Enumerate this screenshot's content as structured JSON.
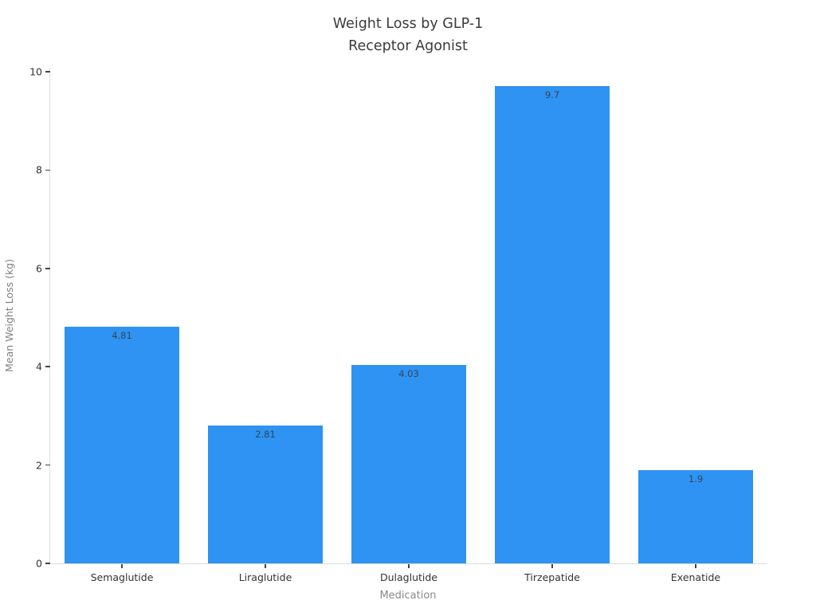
{
  "chart_data": {
    "type": "bar",
    "title": "Weight Loss by GLP-1 Receptor Agonist",
    "title_line1": "Weight Loss by GLP-1",
    "title_line2": "Receptor Agonist",
    "xlabel": "Medication",
    "ylabel": "Mean Weight Loss (kg)",
    "categories": [
      "Semaglutide",
      "Liraglutide",
      "Dulaglutide",
      "Tirzepatide",
      "Exenatide"
    ],
    "values": [
      4.81,
      2.81,
      4.03,
      9.7,
      1.9
    ],
    "value_labels": [
      "4.81",
      "2.81",
      "4.03",
      "9.7",
      "1.9"
    ],
    "yticks": [
      0,
      2,
      4,
      6,
      8,
      10
    ],
    "ytick_labels": [
      "0",
      "2",
      "4",
      "6",
      "8",
      "10"
    ],
    "ylim": [
      0,
      10.08
    ],
    "grid": false,
    "legend": "none",
    "bar_width_fraction": 0.8,
    "style": {
      "bar_color": "#2e93f2",
      "bar_label_color": "#36455a",
      "axis_line_color": "#dcdcdc",
      "tick_mark_color": "#444444",
      "tick_label_color": "#333333",
      "axis_title_color": "#8a8a8a",
      "title_color": "#3b3b3b",
      "background_color": "#ffffff"
    }
  }
}
